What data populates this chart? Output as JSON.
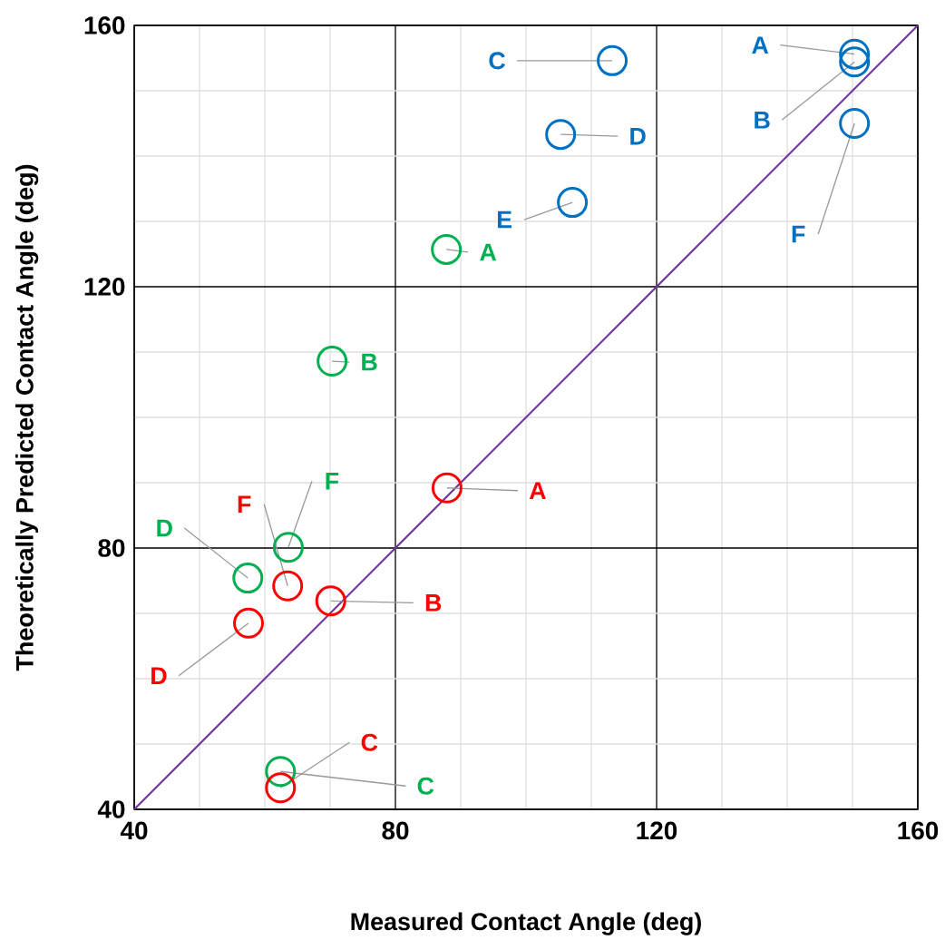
{
  "chart_data": {
    "type": "scatter",
    "xlabel": "Measured Contact Angle (deg)",
    "ylabel": "Theoretically Predicted Contact Angle (deg)",
    "xlim": [
      40,
      160
    ],
    "ylim": [
      40,
      160
    ],
    "xticks": [
      40,
      80,
      120,
      160
    ],
    "yticks": [
      40,
      80,
      120,
      160
    ],
    "grid": true,
    "marker": "circle",
    "series": [
      {
        "color": "#0070c0",
        "x": [
          150.3,
          150.3,
          113.2,
          105.3,
          107.1,
          150.3
        ],
        "values": [
          155.6,
          154.4,
          154.6,
          143.3,
          132.9,
          145.0
        ],
        "value_labels": [
          "A",
          "B",
          "C",
          "D",
          "E",
          "F"
        ]
      },
      {
        "color": "#00b050",
        "x": [
          87.8,
          70.3,
          62.4,
          57.4,
          63.6
        ],
        "values": [
          125.7,
          108.6,
          45.8,
          75.4,
          80.1
        ],
        "value_labels": [
          "A",
          "B",
          "C",
          "D",
          "F"
        ]
      },
      {
        "color": "#ff0000",
        "x": [
          87.9,
          70.1,
          62.4,
          57.5,
          63.5
        ],
        "values": [
          89.2,
          71.9,
          43.3,
          68.5,
          74.2
        ],
        "value_labels": [
          "A",
          "B",
          "C",
          "D",
          "F"
        ]
      },
      {
        "type": "line",
        "color": "#7030a0",
        "x": [
          40,
          160
        ],
        "values": [
          40,
          160
        ],
        "marker": "none"
      }
    ]
  }
}
